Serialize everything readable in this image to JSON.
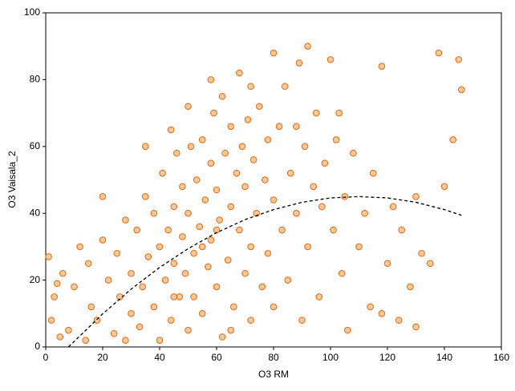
{
  "chart_data": {
    "type": "scatter",
    "x_label": "O3 RM",
    "y_label": "O3 Vaisala_2",
    "xlim": [
      0,
      160
    ],
    "xticks": [
      0,
      20,
      40,
      60,
      80,
      100,
      120,
      140,
      160
    ],
    "ylim": [
      0,
      100
    ],
    "yticks": [
      0,
      20,
      40,
      60,
      80,
      100
    ],
    "grid": false,
    "points": {
      "color": "#e06a10",
      "fill": "#f7c99a",
      "x": [
        1,
        2,
        3,
        5,
        4,
        6,
        8,
        10,
        12,
        14,
        15,
        16,
        18,
        20,
        22,
        24,
        25,
        26,
        28,
        30,
        30,
        32,
        33,
        34,
        35,
        36,
        38,
        38,
        40,
        40,
        41,
        42,
        43,
        44,
        45,
        45,
        46,
        47,
        48,
        48,
        49,
        50,
        50,
        51,
        52,
        52,
        53,
        54,
        55,
        55,
        56,
        57,
        58,
        58,
        59,
        60,
        60,
        61,
        62,
        62,
        63,
        64,
        65,
        65,
        66,
        67,
        68,
        68,
        69,
        70,
        70,
        71,
        72,
        72,
        73,
        74,
        75,
        76,
        77,
        78,
        78,
        80,
        80,
        82,
        83,
        84,
        85,
        86,
        88,
        89,
        90,
        91,
        92,
        94,
        95,
        96,
        98,
        100,
        101,
        102,
        104,
        105,
        106,
        108,
        110,
        112,
        114,
        115,
        118,
        120,
        122,
        124,
        125,
        128,
        130,
        132,
        135,
        138,
        140,
        143,
        145,
        146,
        20,
        28,
        35,
        44,
        50,
        58,
        65,
        72,
        80,
        88,
        97,
        103,
        60,
        55,
        45,
        92,
        130,
        118
      ],
      "y": [
        27,
        8,
        15,
        3,
        19,
        22,
        5,
        18,
        30,
        2,
        25,
        12,
        8,
        32,
        20,
        4,
        28,
        15,
        38,
        10,
        22,
        35,
        6,
        18,
        45,
        27,
        12,
        40,
        2,
        30,
        52,
        20,
        35,
        8,
        42,
        25,
        58,
        15,
        33,
        48,
        22,
        5,
        40,
        60,
        28,
        15,
        50,
        36,
        62,
        10,
        44,
        24,
        55,
        32,
        70,
        18,
        47,
        38,
        75,
        3,
        58,
        26,
        66,
        42,
        12,
        52,
        82,
        35,
        60,
        22,
        48,
        68,
        30,
        8,
        56,
        40,
        72,
        18,
        50,
        62,
        28,
        44,
        12,
        66,
        35,
        78,
        20,
        52,
        40,
        85,
        8,
        60,
        30,
        48,
        70,
        15,
        55,
        86,
        35,
        62,
        22,
        45,
        5,
        58,
        30,
        40,
        12,
        52,
        84,
        25,
        42,
        8,
        35,
        18,
        45,
        28,
        25,
        88,
        48,
        62,
        86,
        77,
        45,
        2,
        60,
        65,
        72,
        80,
        5,
        78,
        88,
        66,
        42,
        70,
        35,
        30,
        15,
        90,
        6,
        10
      ]
    },
    "fit": {
      "color": "#000000",
      "x": [
        8,
        20,
        30,
        40,
        50,
        60,
        70,
        80,
        90,
        100,
        110,
        120,
        130,
        140,
        146
      ],
      "y": [
        0,
        9.9,
        17.3,
        23.8,
        29.4,
        34.2,
        38.1,
        41.1,
        43.3,
        44.6,
        45,
        44.6,
        43.3,
        41.1,
        39.4
      ]
    }
  }
}
